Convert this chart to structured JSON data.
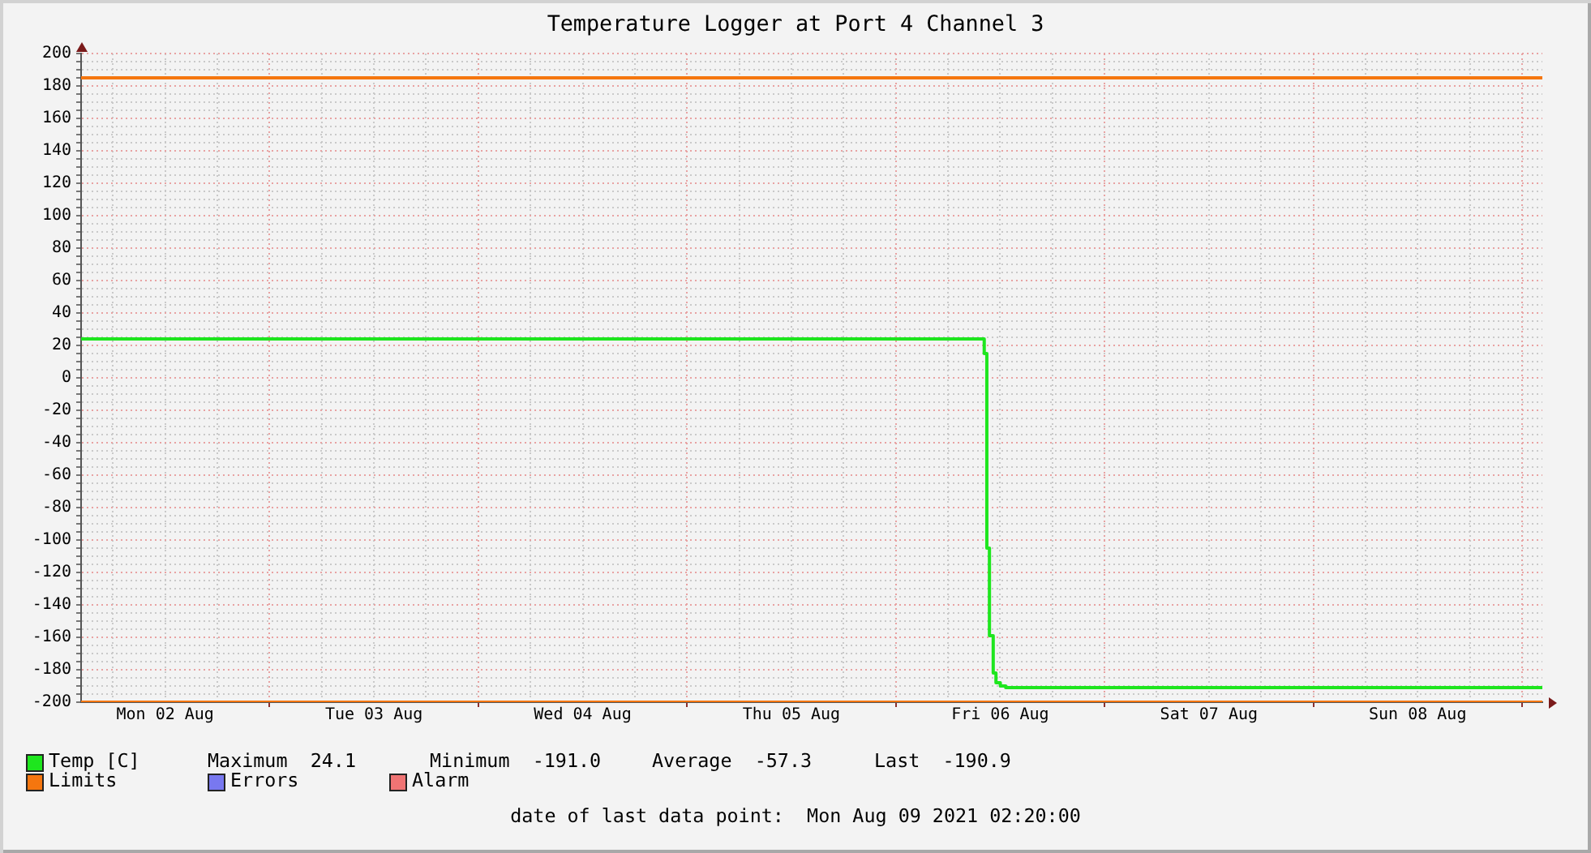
{
  "chart_data": {
    "type": "step",
    "title": "Temperature Logger at Port 4 Channel 3",
    "xlim": [
      "2021-08-02T02:20",
      "2021-08-09T02:20"
    ],
    "xticks": [
      {
        "value": "2021-08-02T06:00",
        "label": null
      },
      {
        "value": "2021-08-02T12:00",
        "label": "Mon 02 Aug"
      },
      {
        "value": "2021-08-02T18:00",
        "label": null
      },
      {
        "value": "2021-08-03T00:00",
        "label": null
      },
      {
        "value": "2021-08-03T06:00",
        "label": null
      },
      {
        "value": "2021-08-03T12:00",
        "label": "Tue 03 Aug"
      },
      {
        "value": "2021-08-03T18:00",
        "label": null
      },
      {
        "value": "2021-08-04T00:00",
        "label": null
      },
      {
        "value": "2021-08-04T06:00",
        "label": null
      },
      {
        "value": "2021-08-04T12:00",
        "label": "Wed 04 Aug"
      },
      {
        "value": "2021-08-04T18:00",
        "label": null
      },
      {
        "value": "2021-08-05T00:00",
        "label": null
      },
      {
        "value": "2021-08-05T06:00",
        "label": null
      },
      {
        "value": "2021-08-05T12:00",
        "label": "Thu 05 Aug"
      },
      {
        "value": "2021-08-05T18:00",
        "label": null
      },
      {
        "value": "2021-08-06T00:00",
        "label": null
      },
      {
        "value": "2021-08-06T06:00",
        "label": null
      },
      {
        "value": "2021-08-06T12:00",
        "label": "Fri 06 Aug"
      },
      {
        "value": "2021-08-06T18:00",
        "label": null
      },
      {
        "value": "2021-08-07T00:00",
        "label": null
      },
      {
        "value": "2021-08-07T06:00",
        "label": null
      },
      {
        "value": "2021-08-07T12:00",
        "label": "Sat 07 Aug"
      },
      {
        "value": "2021-08-07T18:00",
        "label": null
      },
      {
        "value": "2021-08-08T00:00",
        "label": null
      },
      {
        "value": "2021-08-08T06:00",
        "label": null
      },
      {
        "value": "2021-08-08T12:00",
        "label": "Sun 08 Aug"
      },
      {
        "value": "2021-08-08T18:00",
        "label": null
      },
      {
        "value": "2021-08-09T00:00",
        "label": null
      }
    ],
    "ylim": [
      -200,
      200
    ],
    "yticks": [
      -200,
      {
        "value": -195,
        "label": null
      },
      {
        "value": -190,
        "label": null
      },
      {
        "value": -185,
        "label": null
      },
      -180,
      {
        "value": -175,
        "label": null
      },
      {
        "value": -170,
        "label": null
      },
      {
        "value": -165,
        "label": null
      },
      -160,
      {
        "value": -155,
        "label": null
      },
      {
        "value": -150,
        "label": null
      },
      {
        "value": -145,
        "label": null
      },
      -140,
      {
        "value": -135,
        "label": null
      },
      {
        "value": -130,
        "label": null
      },
      {
        "value": -125,
        "label": null
      },
      -120,
      {
        "value": -115,
        "label": null
      },
      {
        "value": -110,
        "label": null
      },
      {
        "value": -105,
        "label": null
      },
      -100,
      {
        "value": -95,
        "label": null
      },
      {
        "value": -90,
        "label": null
      },
      {
        "value": -85,
        "label": null
      },
      -80,
      {
        "value": -75,
        "label": null
      },
      {
        "value": -70,
        "label": null
      },
      {
        "value": -65,
        "label": null
      },
      -60,
      {
        "value": -55,
        "label": null
      },
      {
        "value": -50,
        "label": null
      },
      {
        "value": -45,
        "label": null
      },
      -40,
      {
        "value": -35,
        "label": null
      },
      {
        "value": -30,
        "label": null
      },
      {
        "value": -25,
        "label": null
      },
      -20,
      {
        "value": -15,
        "label": null
      },
      {
        "value": -10,
        "label": null
      },
      {
        "value": -5,
        "label": null
      },
      0,
      {
        "value": 5,
        "label": null
      },
      {
        "value": 10,
        "label": null
      },
      {
        "value": 15,
        "label": null
      },
      20,
      {
        "value": 25,
        "label": null
      },
      {
        "value": 30,
        "label": null
      },
      {
        "value": 35,
        "label": null
      },
      40,
      {
        "value": 45,
        "label": null
      },
      {
        "value": 50,
        "label": null
      },
      {
        "value": 55,
        "label": null
      },
      60,
      {
        "value": 65,
        "label": null
      },
      {
        "value": 70,
        "label": null
      },
      {
        "value": 75,
        "label": null
      },
      80,
      {
        "value": 85,
        "label": null
      },
      {
        "value": 90,
        "label": null
      },
      {
        "value": 95,
        "label": null
      },
      100,
      {
        "value": 105,
        "label": null
      },
      {
        "value": 110,
        "label": null
      },
      {
        "value": 115,
        "label": null
      },
      120,
      {
        "value": 125,
        "label": null
      },
      {
        "value": 130,
        "label": null
      },
      {
        "value": 135,
        "label": null
      },
      140,
      {
        "value": 145,
        "label": null
      },
      {
        "value": 150,
        "label": null
      },
      {
        "value": 155,
        "label": null
      },
      160,
      {
        "value": 165,
        "label": null
      },
      {
        "value": 170,
        "label": null
      },
      {
        "value": 175,
        "label": null
      },
      180,
      {
        "value": 185,
        "label": null
      },
      {
        "value": 190,
        "label": null
      },
      {
        "value": 195,
        "label": null
      },
      200
    ],
    "grid": true,
    "legend": "bottom",
    "marker": "none",
    "line_style": "solid",
    "series": [
      {
        "name": "Temp [C]",
        "color": "#1ee61e",
        "x": [
          "2021-08-02T02:20",
          "2021-08-06T10:10",
          "2021-08-06T10:28",
          "2021-08-06T10:46",
          "2021-08-06T11:12",
          "2021-08-06T11:31",
          "2021-08-06T12:01",
          "2021-08-06T12:38",
          "2021-08-09T02:20"
        ],
        "values": [
          24,
          15,
          -105,
          -159,
          -182,
          -188,
          -190,
          -191,
          -191
        ]
      },
      {
        "name": "Limits",
        "type": "line",
        "color": "#f5760f",
        "x": [
          "2021-08-02T02:20",
          "2021-08-09T02:20"
        ],
        "values": [
          185,
          185
        ]
      },
      {
        "type": "line",
        "color": "#f5760f",
        "x": [
          "2021-08-02T02:20",
          "2021-08-09T02:20"
        ],
        "values": [
          -200,
          -200
        ]
      },
      {
        "name": "Errors",
        "type": "line",
        "color": "#7878f0"
      },
      {
        "name": "Alarm",
        "type": "line",
        "color": "#f07474"
      }
    ],
    "annotations": [
      "Maximum  24.1",
      "Minimum  -191.0",
      "Average  -57.3",
      "Last  -190.9",
      "date of last data point:  Mon Aug 09 2021 02:20:00"
    ]
  }
}
